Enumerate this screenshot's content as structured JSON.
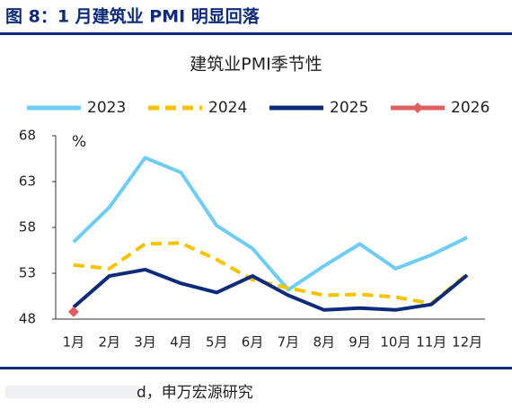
{
  "header": {
    "title": "图 8：1 月建筑业 PMI 明显回落"
  },
  "chart_data": {
    "type": "line",
    "title": "建筑业PMI季节性",
    "y_unit": "%",
    "categories": [
      "1月",
      "2月",
      "3月",
      "4月",
      "5月",
      "6月",
      "7月",
      "8月",
      "9月",
      "10月",
      "11月",
      "12月"
    ],
    "series": [
      {
        "name": "2023",
        "color": "#6fcdf3",
        "dash": false,
        "values": [
          56.4,
          60.2,
          65.6,
          64.0,
          58.2,
          55.7,
          51.2,
          53.8,
          56.2,
          53.5,
          55.0,
          56.9
        ]
      },
      {
        "name": "2024",
        "color": "#f5c200",
        "dash": true,
        "values": [
          53.9,
          53.5,
          56.2,
          56.3,
          54.5,
          52.3,
          51.4,
          50.6,
          50.7,
          50.4,
          49.7,
          52.9
        ]
      },
      {
        "name": "2025",
        "color": "#0d2b7a",
        "dash": false,
        "values": [
          49.3,
          52.7,
          53.4,
          51.9,
          50.9,
          52.7,
          50.6,
          49.0,
          49.2,
          49.0,
          49.6,
          52.8
        ]
      },
      {
        "name": "2026",
        "color": "#e06060",
        "dash": false,
        "marker": "diamond",
        "values": [
          48.8,
          null,
          null,
          null,
          null,
          null,
          null,
          null,
          null,
          null,
          null,
          null
        ]
      }
    ],
    "ylim": [
      48,
      68
    ],
    "yticks": [
      48,
      53,
      58,
      63,
      68
    ],
    "grid": false
  },
  "footer": {
    "source": "d，申万宏源研究"
  }
}
